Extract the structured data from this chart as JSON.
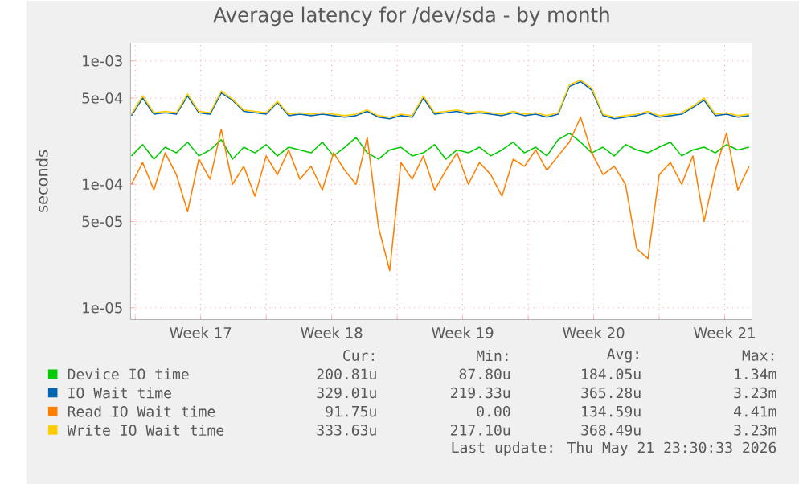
{
  "chart_data": {
    "type": "line",
    "title": "Average latency for /dev/sda - by month",
    "ylabel": "seconds",
    "x": [
      "2026-04-18T19:12",
      "2026-04-19T09:36",
      "2026-04-20T00:00",
      "2026-04-20T14:24",
      "2026-04-21T04:48",
      "2026-04-21T19:12",
      "2026-04-22T09:36",
      "2026-04-23T00:00",
      "2026-04-23T14:24",
      "2026-04-24T04:48",
      "2026-04-24T19:12",
      "2026-04-25T09:36",
      "2026-04-26T00:00",
      "2026-04-26T14:24",
      "2026-04-27T04:48",
      "2026-04-27T19:12",
      "2026-04-28T09:36",
      "2026-04-29T00:00",
      "2026-04-29T14:24",
      "2026-04-30T04:48",
      "2026-04-30T19:12",
      "2026-05-01T09:36",
      "2026-05-02T00:00",
      "2026-05-02T14:24",
      "2026-05-03T04:48",
      "2026-05-03T19:12",
      "2026-05-04T09:36",
      "2026-05-05T00:00",
      "2026-05-05T14:24",
      "2026-05-06T04:48",
      "2026-05-06T19:12",
      "2026-05-07T09:36",
      "2026-05-08T00:00",
      "2026-05-08T14:24",
      "2026-05-09T04:48",
      "2026-05-09T19:12",
      "2026-05-10T09:36",
      "2026-05-11T00:00",
      "2026-05-11T14:24",
      "2026-05-12T04:48",
      "2026-05-12T19:12",
      "2026-05-13T09:36",
      "2026-05-14T00:00",
      "2026-05-14T14:24",
      "2026-05-15T04:48",
      "2026-05-15T19:12",
      "2026-05-16T09:36",
      "2026-05-17T00:00",
      "2026-05-17T14:24",
      "2026-05-18T04:48",
      "2026-05-18T19:12",
      "2026-05-19T09:36",
      "2026-05-20T00:00",
      "2026-05-20T14:24",
      "2026-05-21T04:48",
      "2026-05-21T19:12"
    ],
    "series": [
      {
        "name": "Device IO time",
        "color": "#00cc00",
        "values": [
          0.00017,
          0.00021,
          0.00016,
          0.0002,
          0.00018,
          0.00022,
          0.00017,
          0.00019,
          0.00023,
          0.00016,
          0.0002,
          0.00018,
          0.00021,
          0.00017,
          0.0002,
          0.00019,
          0.00018,
          0.00022,
          0.00017,
          0.0002,
          0.00024,
          0.00018,
          0.00016,
          0.00019,
          0.0002,
          0.00017,
          0.00018,
          0.00021,
          0.00016,
          0.00019,
          0.00018,
          0.0002,
          0.00017,
          0.00019,
          0.00022,
          0.00018,
          0.0002,
          0.00017,
          0.00023,
          0.00026,
          0.00022,
          0.00018,
          0.0002,
          0.00017,
          0.00021,
          0.00019,
          0.00018,
          0.0002,
          0.00022,
          0.00017,
          0.00019,
          0.0002,
          0.00018,
          0.00021,
          0.00019,
          0.0002
        ]
      },
      {
        "name": "IO Wait time",
        "color": "#0066b3",
        "values": [
          0.00036,
          0.0005,
          0.00037,
          0.00038,
          0.00037,
          0.00052,
          0.00038,
          0.00037,
          0.00055,
          0.00048,
          0.00039,
          0.00038,
          0.00037,
          0.00046,
          0.00036,
          0.00037,
          0.00036,
          0.00037,
          0.00036,
          0.00035,
          0.00036,
          0.00039,
          0.00035,
          0.00034,
          0.00036,
          0.00035,
          0.0005,
          0.00037,
          0.00038,
          0.00039,
          0.00037,
          0.00038,
          0.00037,
          0.00036,
          0.00038,
          0.00036,
          0.00037,
          0.00035,
          0.00037,
          0.00062,
          0.00068,
          0.00058,
          0.00036,
          0.00034,
          0.00035,
          0.00036,
          0.00038,
          0.00035,
          0.00036,
          0.00037,
          0.00042,
          0.00048,
          0.00036,
          0.00037,
          0.00035,
          0.00036
        ]
      },
      {
        "name": "Read IO Wait time",
        "color": "#ff8000",
        "values": [
          0.0001,
          0.00015,
          9e-05,
          0.00018,
          0.00012,
          6e-05,
          0.00016,
          0.00011,
          0.00028,
          0.0001,
          0.00014,
          8e-05,
          0.00017,
          0.00012,
          0.00019,
          0.00011,
          0.00014,
          9e-05,
          0.00018,
          0.00013,
          0.0001,
          0.00024,
          4.5e-05,
          2e-05,
          0.00015,
          0.00011,
          0.00017,
          9e-05,
          0.00013,
          0.00018,
          0.0001,
          0.00015,
          0.00012,
          8e-05,
          0.00016,
          0.00014,
          0.00019,
          0.00013,
          0.00017,
          0.00022,
          0.00035,
          0.00018,
          0.00012,
          0.00014,
          0.0001,
          3e-05,
          2.5e-05,
          0.00012,
          0.00015,
          0.0001,
          0.00017,
          5e-05,
          0.00013,
          0.00026,
          9e-05,
          0.00014
        ]
      },
      {
        "name": "Write IO Wait time",
        "color": "#ffcc00",
        "values": [
          0.00037,
          0.00052,
          0.00038,
          0.00039,
          0.00038,
          0.00054,
          0.00039,
          0.00038,
          0.00057,
          0.00049,
          0.0004,
          0.00039,
          0.00038,
          0.00047,
          0.00037,
          0.00038,
          0.00037,
          0.00038,
          0.00037,
          0.00036,
          0.00037,
          0.0004,
          0.00036,
          0.00035,
          0.00037,
          0.00036,
          0.00052,
          0.00038,
          0.00039,
          0.0004,
          0.00038,
          0.00039,
          0.00038,
          0.00037,
          0.00039,
          0.00037,
          0.00038,
          0.00036,
          0.00038,
          0.00064,
          0.0007,
          0.0006,
          0.00037,
          0.00035,
          0.00036,
          0.00037,
          0.00039,
          0.00036,
          0.00037,
          0.00038,
          0.00043,
          0.0005,
          0.00037,
          0.00038,
          0.00036,
          0.00037
        ]
      }
    ],
    "xlim": [
      "2026-04-18T18:00",
      "2026-05-21T23:30"
    ],
    "xticks": [
      {
        "value": "2026-04-19",
        "label": null
      },
      {
        "value": "2026-04-22T12:00",
        "label": "Week 17"
      },
      {
        "value": "2026-04-26",
        "label": null
      },
      {
        "value": "2026-04-29T12:00",
        "label": "Week 18"
      },
      {
        "value": "2026-05-03",
        "label": null
      },
      {
        "value": "2026-05-06T12:00",
        "label": "Week 19"
      },
      {
        "value": "2026-05-10",
        "label": null
      },
      {
        "value": "2026-05-13T12:00",
        "label": "Week 20"
      },
      {
        "value": "2026-05-17",
        "label": null
      },
      {
        "value": "2026-05-20T12:00",
        "label": "Week 21"
      }
    ],
    "ylim": [
      8e-06,
      0.0014
    ],
    "yticks": [
      {
        "value": 1e-05,
        "label": "1e-05"
      },
      {
        "value": 5e-05,
        "label": "5e-05"
      },
      {
        "value": 0.0001,
        "label": "1e-04"
      },
      {
        "value": 0.0005,
        "label": "5e-04"
      },
      {
        "value": 0.001,
        "label": "1e-03"
      }
    ],
    "log": "y",
    "grid": true,
    "marker": "none",
    "line_style": "solid",
    "legend": "bottom",
    "annotations": [
      "Cur:",
      "Min:",
      "Avg:",
      "Max:",
      "200.81u",
      "87.80u",
      "184.05u",
      "1.34m",
      "329.01u",
      "219.33u",
      "365.28u",
      "3.23m",
      "91.75u",
      "0.00",
      "134.59u",
      "4.41m",
      "333.63u",
      "217.10u",
      "368.49u",
      "3.23m",
      "Last update: Thu May 21 23:30:33 2026"
    ]
  }
}
